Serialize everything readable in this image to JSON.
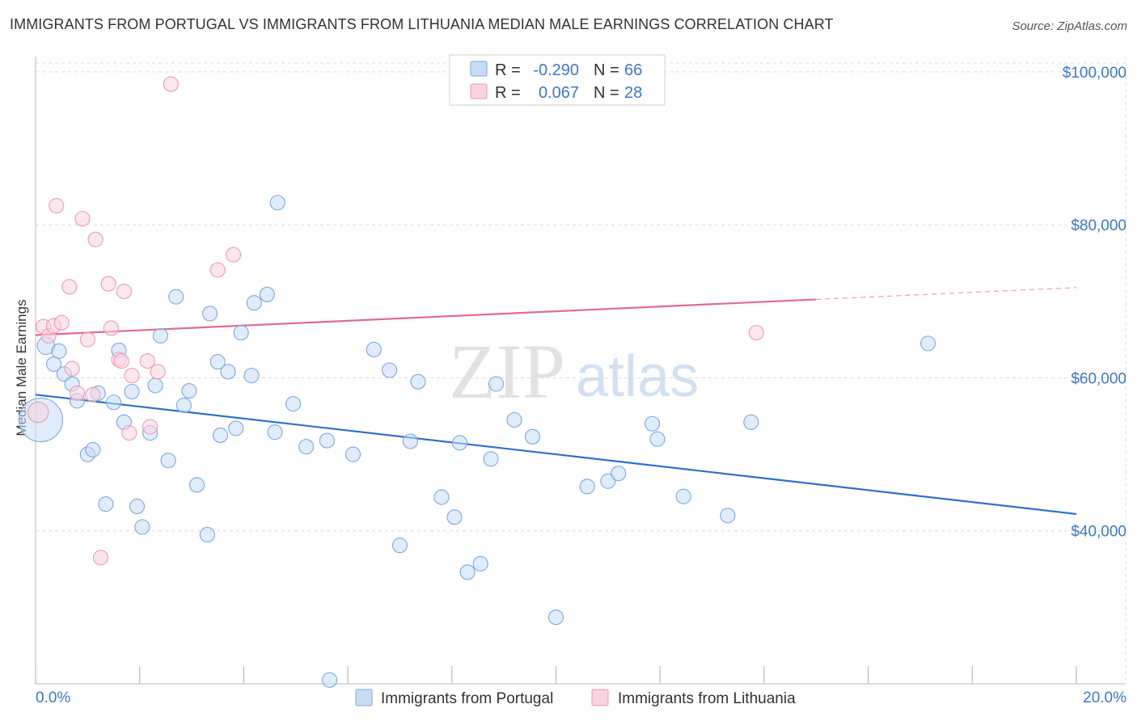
{
  "title": "IMMIGRANTS FROM PORTUGAL VS IMMIGRANTS FROM LITHUANIA MEDIAN MALE EARNINGS CORRELATION CHART",
  "source": "Source: ZipAtlas.com",
  "watermark": {
    "part1": "ZIP",
    "part2": "atlas"
  },
  "legend": {
    "r_label": "R =",
    "n_label": "N =",
    "rows": [
      {
        "r": "-0.290",
        "n": "66",
        "color": "#aecbf0",
        "stroke": "#7aa8e0"
      },
      {
        "r": "0.067",
        "n": "28",
        "color": "#f8c4d4",
        "stroke": "#ee9ab4"
      }
    ]
  },
  "bottom_legend": [
    "Immigrants from Portugal",
    "Immigrants from Lithuania"
  ],
  "chart_data": {
    "type": "scatter",
    "title": "IMMIGRANTS FROM PORTUGAL VS IMMIGRANTS FROM LITHUANIA MEDIAN MALE EARNINGS CORRELATION CHART",
    "xlabel": "",
    "ylabel": "Median Male Earnings",
    "xlim": [
      0,
      20
    ],
    "ylim": [
      20000,
      102000
    ],
    "x_tick_labels": [
      "0.0%",
      "20.0%"
    ],
    "y_ticks": [
      {
        "value": 40000,
        "label": "$40,000"
      },
      {
        "value": 60000,
        "label": "$60,000"
      },
      {
        "value": 80000,
        "label": "$80,000"
      },
      {
        "value": 100000,
        "label": "$100,000"
      }
    ],
    "grid": true,
    "legend_position": "top-center",
    "series": [
      {
        "name": "Immigrants from Portugal",
        "color": "#7aa8e0",
        "fill": "#c8dcf5",
        "line_color": "#2f6fd0",
        "trend": {
          "x": [
            0,
            20
          ],
          "y": [
            57800,
            42200
          ],
          "dashed_from": null
        },
        "points": [
          [
            0.1,
            54500,
            30
          ],
          [
            0.2,
            64200,
            12
          ],
          [
            0.35,
            61800,
            10
          ],
          [
            0.45,
            63500,
            10
          ],
          [
            0.55,
            60500,
            10
          ],
          [
            0.7,
            59200,
            10
          ],
          [
            0.8,
            57000,
            10
          ],
          [
            1.0,
            50000,
            10
          ],
          [
            1.1,
            50600,
            10
          ],
          [
            1.2,
            58000,
            10
          ],
          [
            1.35,
            43500,
            10
          ],
          [
            1.5,
            56800,
            10
          ],
          [
            1.6,
            63600,
            10
          ],
          [
            1.7,
            54200,
            10
          ],
          [
            1.85,
            58200,
            10
          ],
          [
            1.95,
            43200,
            10
          ],
          [
            2.05,
            40500,
            10
          ],
          [
            2.2,
            52800,
            10
          ],
          [
            2.3,
            59000,
            10
          ],
          [
            2.4,
            65500,
            10
          ],
          [
            2.55,
            49200,
            10
          ],
          [
            2.7,
            70600,
            10
          ],
          [
            2.85,
            56400,
            10
          ],
          [
            2.95,
            58300,
            10
          ],
          [
            3.1,
            46000,
            10
          ],
          [
            3.3,
            39500,
            10
          ],
          [
            3.35,
            68400,
            10
          ],
          [
            3.5,
            62100,
            10
          ],
          [
            3.55,
            52500,
            10
          ],
          [
            3.7,
            60800,
            10
          ],
          [
            3.85,
            53400,
            10
          ],
          [
            3.95,
            65900,
            10
          ],
          [
            4.15,
            60300,
            10
          ],
          [
            4.2,
            69800,
            10
          ],
          [
            4.45,
            70900,
            10
          ],
          [
            4.6,
            52900,
            10
          ],
          [
            4.65,
            82900,
            10
          ],
          [
            4.95,
            56600,
            10
          ],
          [
            5.2,
            51000,
            10
          ],
          [
            5.6,
            51800,
            10
          ],
          [
            5.65,
            20500,
            10
          ],
          [
            6.1,
            50000,
            10
          ],
          [
            6.5,
            63700,
            10
          ],
          [
            6.8,
            61000,
            10
          ],
          [
            7.0,
            38100,
            10
          ],
          [
            7.2,
            51700,
            10
          ],
          [
            7.35,
            59500,
            10
          ],
          [
            7.8,
            44400,
            10
          ],
          [
            8.05,
            41800,
            10
          ],
          [
            8.15,
            51500,
            10
          ],
          [
            8.3,
            34600,
            10
          ],
          [
            8.55,
            35700,
            10
          ],
          [
            8.75,
            49400,
            10
          ],
          [
            8.85,
            59200,
            10
          ],
          [
            9.2,
            54500,
            10
          ],
          [
            9.55,
            52300,
            10
          ],
          [
            10.0,
            28700,
            10
          ],
          [
            10.6,
            45800,
            10
          ],
          [
            11.0,
            46500,
            10
          ],
          [
            11.2,
            47500,
            10
          ],
          [
            11.85,
            54000,
            10
          ],
          [
            11.95,
            52000,
            10
          ],
          [
            12.45,
            44500,
            10
          ],
          [
            13.3,
            42000,
            10
          ],
          [
            13.75,
            54200,
            10
          ],
          [
            17.15,
            64500,
            10
          ]
        ]
      },
      {
        "name": "Immigrants from Lithuania",
        "color": "#ee9ab4",
        "fill": "#f9d4e0",
        "line_color": "#e46a92",
        "trend": {
          "x": [
            0,
            20
          ],
          "y": [
            65600,
            71800
          ],
          "dashed_from": 15.0
        },
        "points": [
          [
            0.05,
            55500,
            14
          ],
          [
            0.15,
            66700,
            10
          ],
          [
            0.25,
            65500,
            10
          ],
          [
            0.35,
            66800,
            10
          ],
          [
            0.4,
            82500,
            10
          ],
          [
            0.5,
            67200,
            10
          ],
          [
            0.65,
            71900,
            10
          ],
          [
            0.7,
            61200,
            10
          ],
          [
            0.8,
            58000,
            10
          ],
          [
            0.9,
            80800,
            10
          ],
          [
            1.0,
            65000,
            10
          ],
          [
            1.1,
            57800,
            10
          ],
          [
            1.15,
            78100,
            10
          ],
          [
            1.25,
            36500,
            10
          ],
          [
            1.4,
            72300,
            10
          ],
          [
            1.45,
            66500,
            10
          ],
          [
            1.6,
            62400,
            10
          ],
          [
            1.65,
            62200,
            10
          ],
          [
            1.7,
            71300,
            10
          ],
          [
            1.8,
            52800,
            10
          ],
          [
            1.85,
            60300,
            10
          ],
          [
            2.15,
            62200,
            10
          ],
          [
            2.2,
            53600,
            10
          ],
          [
            2.35,
            60800,
            10
          ],
          [
            2.6,
            98400,
            10
          ],
          [
            3.5,
            74100,
            10
          ],
          [
            3.8,
            76100,
            10
          ],
          [
            13.85,
            65900,
            10
          ]
        ]
      }
    ]
  }
}
